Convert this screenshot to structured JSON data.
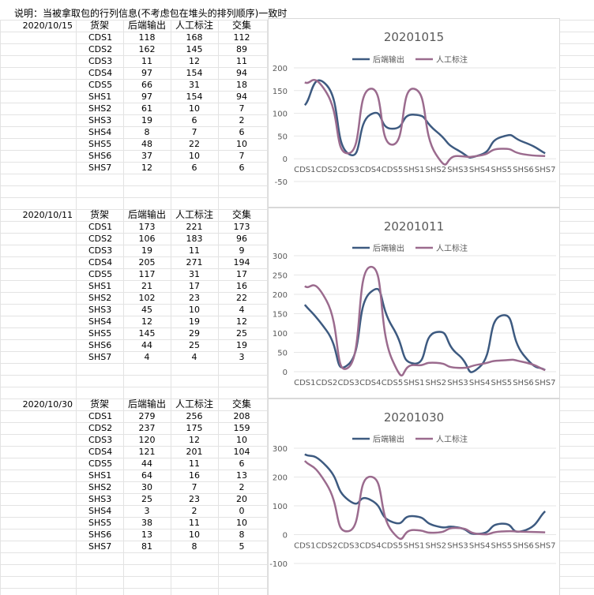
{
  "note": "说明：当被拿取包的行列信息(不考虑包在堆头的排列顺序)一致时",
  "colors": {
    "series1": "#3d5a80",
    "series2": "#9b6b8e",
    "grid": "#d9d9d9",
    "gridline": "#e6e6e6",
    "text": "#595959"
  },
  "tables": [
    {
      "date": "2020/10/15",
      "headers": [
        "货架",
        "后端输出",
        "人工标注",
        "交集"
      ],
      "rows": [
        [
          "CDS1",
          "118",
          "168",
          "112"
        ],
        [
          "CDS2",
          "162",
          "145",
          "89"
        ],
        [
          "CDS3",
          "11",
          "12",
          "11"
        ],
        [
          "CDS4",
          "97",
          "154",
          "94"
        ],
        [
          "CDS5",
          "66",
          "31",
          "18"
        ],
        [
          "SHS1",
          "97",
          "154",
          "94"
        ],
        [
          "SHS2",
          "61",
          "10",
          "7"
        ],
        [
          "SHS3",
          "19",
          "6",
          "2"
        ],
        [
          "SHS4",
          "8",
          "7",
          "6"
        ],
        [
          "SHS5",
          "48",
          "22",
          "10"
        ],
        [
          "SHS6",
          "37",
          "10",
          "7"
        ],
        [
          "SHS7",
          "12",
          "6",
          "6"
        ]
      ]
    },
    {
      "date": "2020/10/11",
      "headers": [
        "货架",
        "后端输出",
        "人工标注",
        "交集"
      ],
      "rows": [
        [
          "CDS1",
          "173",
          "221",
          "173"
        ],
        [
          "CDS2",
          "106",
          "183",
          "96"
        ],
        [
          "CDS3",
          "19",
          "11",
          "9"
        ],
        [
          "CDS4",
          "205",
          "271",
          "194"
        ],
        [
          "CDS5",
          "117",
          "31",
          "17"
        ],
        [
          "SHS1",
          "21",
          "17",
          "16"
        ],
        [
          "SHS2",
          "102",
          "23",
          "22"
        ],
        [
          "SHS3",
          "45",
          "10",
          "4"
        ],
        [
          "SHS4",
          "12",
          "19",
          "12"
        ],
        [
          "SHS5",
          "145",
          "29",
          "25"
        ],
        [
          "SHS6",
          "44",
          "25",
          "19"
        ],
        [
          "SHS7",
          "4",
          "4",
          "3"
        ]
      ]
    },
    {
      "date": "2020/10/30",
      "headers": [
        "货架",
        "后端输出",
        "人工标注",
        "交集"
      ],
      "rows": [
        [
          "CDS1",
          "279",
          "256",
          "208"
        ],
        [
          "CDS2",
          "237",
          "175",
          "159"
        ],
        [
          "CDS3",
          "120",
          "12",
          "10"
        ],
        [
          "CDS4",
          "121",
          "201",
          "104"
        ],
        [
          "CDS5",
          "44",
          "11",
          "6"
        ],
        [
          "SHS1",
          "64",
          "16",
          "13"
        ],
        [
          "SHS2",
          "30",
          "7",
          "2"
        ],
        [
          "SHS3",
          "25",
          "23",
          "20"
        ],
        [
          "SHS4",
          "3",
          "2",
          "0"
        ],
        [
          "SHS5",
          "38",
          "11",
          "10"
        ],
        [
          "SHS6",
          "13",
          "10",
          "8"
        ],
        [
          "SHS7",
          "81",
          "8",
          "5"
        ]
      ]
    }
  ],
  "chart_data": [
    {
      "type": "line",
      "title": "20201015",
      "categories": [
        "CDS1",
        "CDS2",
        "CDS3",
        "CDS4",
        "CDS5",
        "SHS1",
        "SHS2",
        "SHS3",
        "SHS4",
        "SHS5",
        "SHS6",
        "SHS7"
      ],
      "series": [
        {
          "name": "后端输出",
          "values": [
            118,
            162,
            11,
            97,
            66,
            97,
            61,
            19,
            8,
            48,
            37,
            12
          ]
        },
        {
          "name": "人工标注",
          "values": [
            168,
            145,
            12,
            154,
            31,
            154,
            10,
            6,
            7,
            22,
            10,
            6
          ]
        }
      ],
      "ylim": [
        -50,
        200
      ],
      "yticks": [
        -50,
        0,
        50,
        100,
        150,
        200
      ],
      "smooth": true,
      "grid": true,
      "legend": "top-center"
    },
    {
      "type": "line",
      "title": "20201011",
      "categories": [
        "CDS1",
        "CDS2",
        "CDS3",
        "CDS4",
        "CDS5",
        "SHS1",
        "SHS2",
        "SHS3",
        "SHS4",
        "SHS5",
        "SHS6",
        "SHS7"
      ],
      "series": [
        {
          "name": "后端输出",
          "values": [
            173,
            106,
            19,
            205,
            117,
            21,
            102,
            45,
            12,
            145,
            44,
            4
          ]
        },
        {
          "name": "人工标注",
          "values": [
            221,
            183,
            11,
            271,
            31,
            17,
            23,
            10,
            19,
            29,
            25,
            4
          ]
        }
      ],
      "ylim": [
        0,
        300
      ],
      "yticks": [
        0,
        50,
        100,
        150,
        200,
        250,
        300
      ],
      "smooth": true,
      "grid": true,
      "legend": "top-center"
    },
    {
      "type": "line",
      "title": "20201030",
      "categories": [
        "CDS1",
        "CDS2",
        "CDS3",
        "CDS4",
        "CDS5",
        "SHS1",
        "SHS2",
        "SHS3",
        "SHS4",
        "SHS5",
        "SHS6",
        "SHS7"
      ],
      "series": [
        {
          "name": "后端输出",
          "values": [
            279,
            237,
            120,
            121,
            44,
            64,
            30,
            25,
            3,
            38,
            13,
            81
          ]
        },
        {
          "name": "人工标注",
          "values": [
            256,
            175,
            12,
            201,
            11,
            16,
            7,
            23,
            2,
            11,
            10,
            8
          ]
        }
      ],
      "ylim": [
        -100,
        300
      ],
      "yticks": [
        -100,
        0,
        100,
        200,
        300
      ],
      "smooth": true,
      "grid": true,
      "legend": "top-center"
    }
  ]
}
